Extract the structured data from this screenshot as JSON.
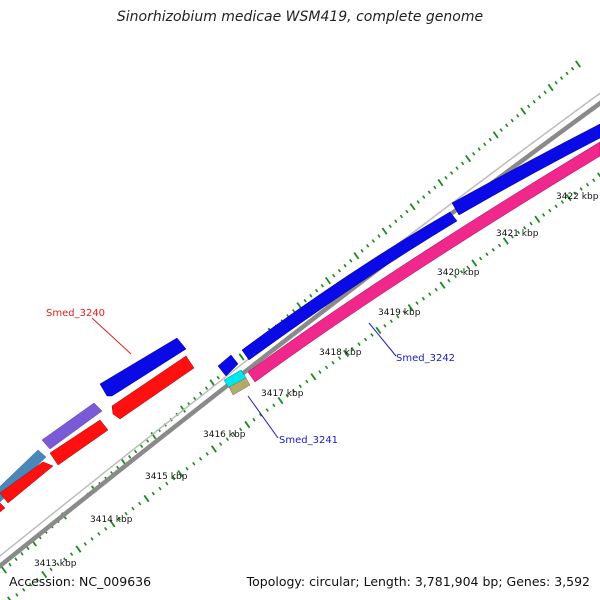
{
  "title": "Sinorhizobium medicae WSM419, complete genome",
  "footer": {
    "accession": "Accession: NC_009636",
    "summary": "Topology: circular; Length: 3,781,904 bp; Genes: 3,592"
  },
  "axis_unit": "kbp",
  "ticks": [
    {
      "kbp": 3413,
      "label": "3413 kbp"
    },
    {
      "kbp": 3414,
      "label": "3414 kbp"
    },
    {
      "kbp": 3415,
      "label": "3415 kbp"
    },
    {
      "kbp": 3416,
      "label": "3416 kbp"
    },
    {
      "kbp": 3417,
      "label": "3417 kbp"
    },
    {
      "kbp": 3418,
      "label": "3418 kbp"
    },
    {
      "kbp": 3419,
      "label": "3419 kbp"
    },
    {
      "kbp": 3420,
      "label": "3420 kbp"
    },
    {
      "kbp": 3421,
      "label": "3421 kbp"
    },
    {
      "kbp": 3422,
      "label": "3422 kbp"
    }
  ],
  "gene_labels": [
    {
      "name": "Smed_3240",
      "color": "#e0201c"
    },
    {
      "name": "Smed_3241",
      "color": "#1a1acc"
    },
    {
      "name": "Smed_3242",
      "color": "#1a1acc"
    }
  ],
  "colors": {
    "backbone": "#8a8a8a",
    "tick": "#1a8a1a",
    "forward_cds": "#0a0ae6",
    "reverse_cds": "#ff1010",
    "purple_cds": "#7a5ad6",
    "steelblue_cds": "#4a86b8",
    "magenta_cds": "#f0288c",
    "cyan_cds": "#00e6f0",
    "tan_cds": "#b4aa6e"
  }
}
